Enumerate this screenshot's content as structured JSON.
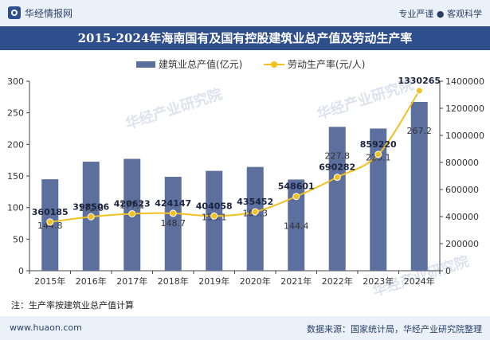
{
  "header": {
    "brand": "华经情报网",
    "slogan": "专业严谨 ● 客观科学"
  },
  "title": "2015-2024年海南国有及国有控股建筑业总产值及劳动生产率",
  "legend": {
    "bar_label": "建筑业总产值(亿元)",
    "line_label": "劳动生产率(元/人)"
  },
  "note": "注：生产率按建筑业总产值计算",
  "footer": {
    "url": "www.huaon.com",
    "source": "数据来源：国家统计局，华经产业研究院整理"
  },
  "watermark": "华经产业研究院",
  "colors": {
    "bar": "#5c6f9d",
    "line": "#f4c020",
    "title_bg": "#2f4e8c",
    "band_bg": "#eaf1f9"
  },
  "chart_data": {
    "type": "bar+line",
    "categories": [
      "2015年",
      "2016年",
      "2017年",
      "2018年",
      "2019年",
      "2020年",
      "2021年",
      "2022年",
      "2023年",
      "2024年"
    ],
    "series": [
      {
        "name": "建筑业总产值(亿元)",
        "type": "bar",
        "axis": "left",
        "values": [
          144.8,
          172.6,
          177.1,
          148.7,
          158.1,
          164.3,
          144.4,
          227.8,
          225.1,
          267.2
        ],
        "labels": [
          "144.8",
          "172.6",
          "177.1",
          "148.7",
          "158.1",
          "164.3",
          "144.4",
          "227.8",
          "225.1",
          "267.2"
        ]
      },
      {
        "name": "劳动生产率(元/人)",
        "type": "line",
        "axis": "right",
        "values": [
          360185,
          398506,
          420623,
          424147,
          404058,
          435452,
          548601,
          690282,
          859220,
          1330265
        ],
        "labels": [
          "360185",
          "398506",
          "420623",
          "424147",
          "404058",
          "435452",
          "548601",
          "690282",
          "859220",
          "1330265"
        ]
      }
    ],
    "y_left": {
      "min": 0,
      "max": 300,
      "ticks": [
        0,
        50,
        100,
        150,
        200,
        250,
        300
      ],
      "tick_labels": [
        "0",
        "50",
        "100",
        "150",
        "200",
        "250",
        "300"
      ]
    },
    "y_right": {
      "min": 0,
      "max": 1400000,
      "ticks": [
        0,
        200000,
        400000,
        600000,
        800000,
        1000000,
        1200000,
        1400000
      ],
      "tick_labels": [
        "0",
        "200000",
        "400000",
        "600000",
        "800000",
        "1000000",
        "1200000",
        "1400000"
      ]
    },
    "grid": false,
    "legend_position": "top"
  }
}
